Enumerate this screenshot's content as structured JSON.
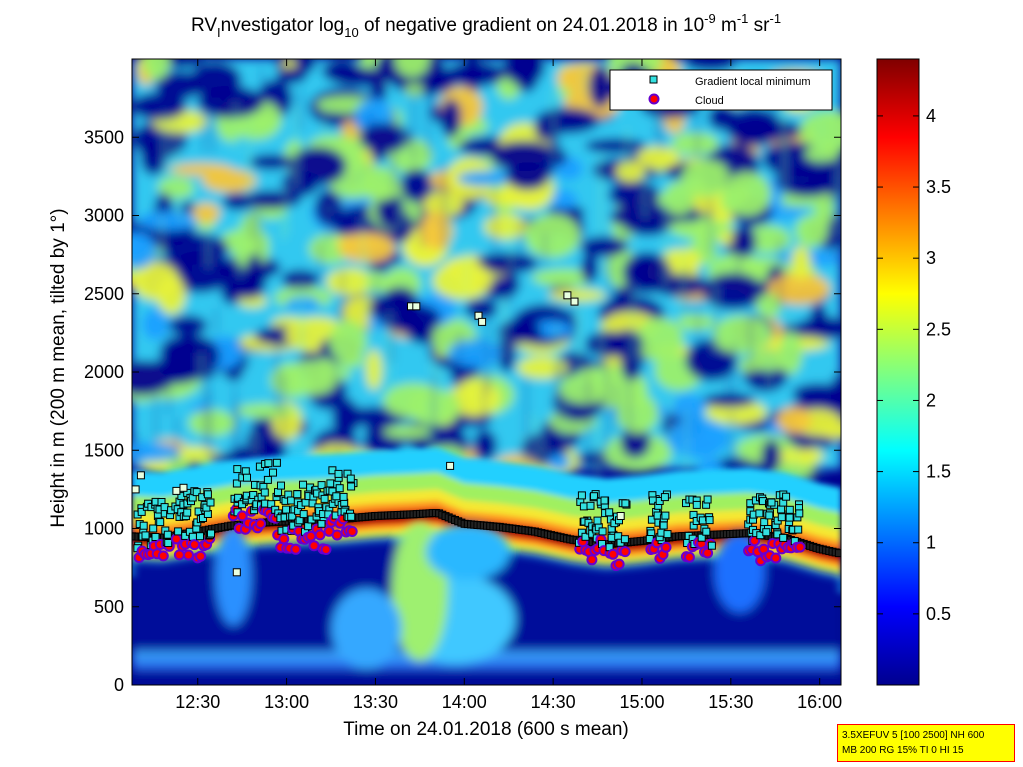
{
  "chart_data": {
    "type": "heatmap",
    "title": {
      "prefix": "RV",
      "sub1": "I",
      "mid": "nvestigator log",
      "sub2": "10",
      "rest": " of negative gradient on 24.01.2018 in 10",
      "sup1": "-9",
      "unit1": " m",
      "sup2": "-1",
      "unit2": " sr",
      "sup3": "-1"
    },
    "xlabel": "Time on 24.01.2018 (600 s mean)",
    "ylabel": "Height in m (200 m mean, tilted by 1°)",
    "x_ticks": [
      {
        "t": 12.5,
        "label": "12:30"
      },
      {
        "t": 13.0,
        "label": "13:00"
      },
      {
        "t": 13.5,
        "label": "13:30"
      },
      {
        "t": 14.0,
        "label": "14:00"
      },
      {
        "t": 14.5,
        "label": "14:30"
      },
      {
        "t": 15.0,
        "label": "15:00"
      },
      {
        "t": 15.5,
        "label": "15:30"
      },
      {
        "t": 16.0,
        "label": "16:00"
      }
    ],
    "xlim": [
      12.13,
      16.12
    ],
    "ylim": [
      0,
      4000
    ],
    "y_ticks": [
      0,
      500,
      1000,
      1500,
      2000,
      2500,
      3000,
      3500
    ],
    "colorbar": {
      "range": [
        0,
        4.4
      ],
      "ticks": [
        {
          "v": 0.5,
          "label": "0.5"
        },
        {
          "v": 1,
          "label": "1"
        },
        {
          "v": 1.5,
          "label": "1.5"
        },
        {
          "v": 2,
          "label": "2"
        },
        {
          "v": 2.5,
          "label": "2.5"
        },
        {
          "v": 3,
          "label": "3"
        },
        {
          "v": 3.5,
          "label": "3.5"
        },
        {
          "v": 4,
          "label": "4"
        }
      ]
    },
    "legend": {
      "position": "top-right",
      "entries": [
        {
          "label": "Gradient local minimum",
          "marker": "square",
          "color": "#33e0e0"
        },
        {
          "label": "Cloud",
          "marker": "circle",
          "color": "#ff0000"
        }
      ]
    },
    "boundary_layer_top": [
      [
        12.13,
        950
      ],
      [
        12.3,
        940
      ],
      [
        12.5,
        980
      ],
      [
        12.7,
        1020
      ],
      [
        12.9,
        1040
      ],
      [
        13.1,
        1050
      ],
      [
        13.3,
        1060
      ],
      [
        13.5,
        1080
      ],
      [
        13.7,
        1090
      ],
      [
        13.85,
        1100
      ],
      [
        14.0,
        1030
      ],
      [
        14.2,
        1010
      ],
      [
        14.4,
        980
      ],
      [
        14.6,
        930
      ],
      [
        14.8,
        900
      ],
      [
        15.0,
        920
      ],
      [
        15.2,
        950
      ],
      [
        15.4,
        960
      ],
      [
        15.6,
        970
      ],
      [
        15.8,
        940
      ],
      [
        16.0,
        870
      ],
      [
        16.12,
        840
      ]
    ],
    "cloud_segments": [
      {
        "t_start": 12.17,
        "t_end": 12.35,
        "h": 830
      },
      {
        "t_start": 12.38,
        "t_end": 12.58,
        "h": 880
      },
      {
        "t_start": 12.7,
        "t_end": 12.95,
        "h": 1060
      },
      {
        "t_start": 12.95,
        "t_end": 13.25,
        "h": 930
      },
      {
        "t_start": 13.25,
        "t_end": 13.38,
        "h": 1020
      },
      {
        "t_start": 14.65,
        "t_end": 14.8,
        "h": 860
      },
      {
        "t_start": 14.82,
        "t_end": 14.92,
        "h": 830
      },
      {
        "t_start": 15.05,
        "t_end": 15.15,
        "h": 860
      },
      {
        "t_start": 15.25,
        "t_end": 15.4,
        "h": 850
      },
      {
        "t_start": 15.6,
        "t_end": 15.9,
        "h": 860
      }
    ],
    "isolated_minima": [
      [
        12.15,
        1250
      ],
      [
        12.18,
        1340
      ],
      [
        12.38,
        1240
      ],
      [
        12.42,
        1260
      ],
      [
        13.7,
        2420
      ],
      [
        13.73,
        2420
      ],
      [
        14.08,
        2360
      ],
      [
        14.1,
        2320
      ],
      [
        14.58,
        2490
      ],
      [
        14.62,
        2450
      ],
      [
        13.92,
        1400
      ],
      [
        14.88,
        1080
      ],
      [
        12.72,
        720
      ]
    ]
  },
  "info_box": {
    "line1": "3.5XEFUV 5 [100 2500] NH 600",
    "line2": "MB 200 RG 15% TI 0 HI 15"
  }
}
